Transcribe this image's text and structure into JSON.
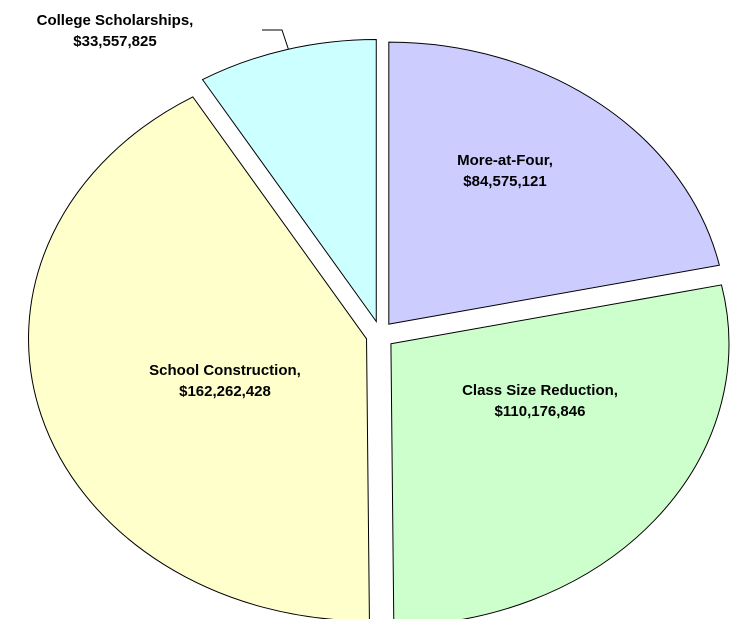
{
  "chart_data": {
    "type": "pie",
    "categories": [
      "More-at-Four,",
      "Class Size Reduction,",
      "School Construction,",
      "College Scholarships,"
    ],
    "values": [
      84575121,
      110176846,
      162262428,
      33557825
    ],
    "value_labels": [
      "$84,575,121",
      "$110,176,846",
      "$162,262,428",
      "$33,557,825"
    ],
    "colors": [
      "#ccccff",
      "#ccffcc",
      "#ffffcc",
      "#ccffff"
    ]
  }
}
